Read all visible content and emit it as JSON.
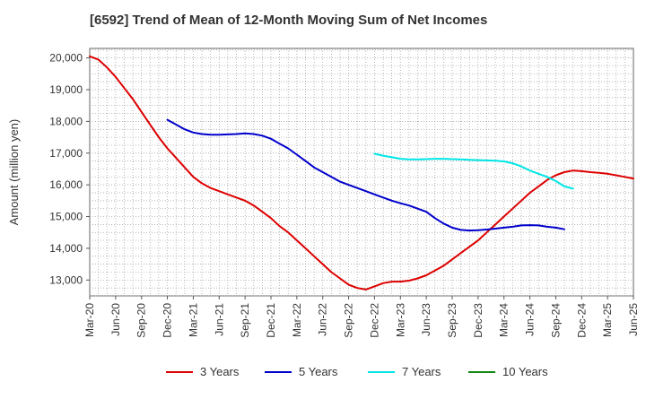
{
  "chart_data": {
    "type": "line",
    "title": "[6592]  Trend of Mean of 12-Month Moving Sum of Net Incomes",
    "xlabel": "",
    "ylabel": "Amount (million yen)",
    "ylim": [
      12500,
      20300
    ],
    "yticks": [
      13000,
      14000,
      15000,
      16000,
      17000,
      18000,
      19000,
      20000
    ],
    "ytick_labels": [
      "13,000",
      "14,000",
      "15,000",
      "16,000",
      "17,000",
      "18,000",
      "19,000",
      "20,000"
    ],
    "xticks": [
      "Mar-20",
      "Jun-20",
      "Sep-20",
      "Dec-20",
      "Mar-21",
      "Jun-21",
      "Sep-21",
      "Dec-21",
      "Mar-22",
      "Jun-22",
      "Sep-22",
      "Dec-22",
      "Mar-23",
      "Jun-23",
      "Sep-23",
      "Dec-23",
      "Mar-24",
      "Jun-24",
      "Sep-24",
      "Dec-24",
      "Mar-25",
      "Jun-25"
    ],
    "grid": true,
    "legend_position": "bottom",
    "series": [
      {
        "name": "3 Years",
        "color": "#dd0000",
        "points": [
          [
            0,
            20050
          ],
          [
            1,
            19950
          ],
          [
            2,
            19700
          ],
          [
            3,
            19400
          ],
          [
            4,
            19050
          ],
          [
            5,
            18700
          ],
          [
            6,
            18300
          ],
          [
            7,
            17900
          ],
          [
            8,
            17500
          ],
          [
            9,
            17150
          ],
          [
            10,
            16850
          ],
          [
            11,
            16550
          ],
          [
            12,
            16250
          ],
          [
            13,
            16050
          ],
          [
            14,
            15900
          ],
          [
            15,
            15800
          ],
          [
            16,
            15700
          ],
          [
            17,
            15600
          ],
          [
            18,
            15500
          ],
          [
            19,
            15350
          ],
          [
            20,
            15150
          ],
          [
            21,
            14950
          ],
          [
            22,
            14700
          ],
          [
            23,
            14500
          ],
          [
            24,
            14250
          ],
          [
            25,
            14000
          ],
          [
            26,
            13750
          ],
          [
            27,
            13500
          ],
          [
            28,
            13250
          ],
          [
            29,
            13050
          ],
          [
            30,
            12850
          ],
          [
            31,
            12750
          ],
          [
            32,
            12700
          ],
          [
            33,
            12800
          ],
          [
            34,
            12900
          ],
          [
            35,
            12950
          ],
          [
            36,
            12950
          ],
          [
            37,
            12980
          ],
          [
            38,
            13050
          ],
          [
            39,
            13150
          ],
          [
            40,
            13300
          ],
          [
            41,
            13450
          ],
          [
            42,
            13650
          ],
          [
            43,
            13850
          ],
          [
            44,
            14050
          ],
          [
            45,
            14250
          ],
          [
            46,
            14500
          ],
          [
            47,
            14750
          ],
          [
            48,
            15000
          ],
          [
            49,
            15250
          ],
          [
            50,
            15500
          ],
          [
            51,
            15750
          ],
          [
            52,
            15950
          ],
          [
            53,
            16150
          ],
          [
            54,
            16300
          ],
          [
            55,
            16400
          ],
          [
            56,
            16450
          ],
          [
            57,
            16430
          ],
          [
            58,
            16400
          ],
          [
            59,
            16380
          ],
          [
            60,
            16350
          ],
          [
            61,
            16300
          ],
          [
            62,
            16250
          ],
          [
            63,
            16200
          ]
        ]
      },
      {
        "name": "5 Years",
        "color": "#0000cc",
        "points": [
          [
            9,
            18050
          ],
          [
            10,
            17900
          ],
          [
            11,
            17750
          ],
          [
            12,
            17650
          ],
          [
            13,
            17600
          ],
          [
            14,
            17580
          ],
          [
            15,
            17580
          ],
          [
            16,
            17590
          ],
          [
            17,
            17600
          ],
          [
            18,
            17620
          ],
          [
            19,
            17600
          ],
          [
            20,
            17550
          ],
          [
            21,
            17450
          ],
          [
            22,
            17300
          ],
          [
            23,
            17150
          ],
          [
            24,
            16950
          ],
          [
            25,
            16750
          ],
          [
            26,
            16550
          ],
          [
            27,
            16400
          ],
          [
            28,
            16250
          ],
          [
            29,
            16100
          ],
          [
            30,
            16000
          ],
          [
            31,
            15900
          ],
          [
            32,
            15800
          ],
          [
            33,
            15700
          ],
          [
            34,
            15600
          ],
          [
            35,
            15500
          ],
          [
            36,
            15420
          ],
          [
            37,
            15350
          ],
          [
            38,
            15250
          ],
          [
            39,
            15150
          ],
          [
            40,
            14950
          ],
          [
            41,
            14780
          ],
          [
            42,
            14650
          ],
          [
            43,
            14580
          ],
          [
            44,
            14560
          ],
          [
            45,
            14570
          ],
          [
            46,
            14590
          ],
          [
            47,
            14620
          ],
          [
            48,
            14650
          ],
          [
            49,
            14680
          ],
          [
            50,
            14720
          ],
          [
            51,
            14730
          ],
          [
            52,
            14720
          ],
          [
            53,
            14680
          ],
          [
            54,
            14650
          ],
          [
            55,
            14600
          ]
        ]
      },
      {
        "name": "7 Years",
        "color": "#00e5e5",
        "points": [
          [
            33,
            16980
          ],
          [
            34,
            16920
          ],
          [
            35,
            16870
          ],
          [
            36,
            16820
          ],
          [
            37,
            16800
          ],
          [
            38,
            16800
          ],
          [
            39,
            16810
          ],
          [
            40,
            16820
          ],
          [
            41,
            16820
          ],
          [
            42,
            16810
          ],
          [
            43,
            16800
          ],
          [
            44,
            16790
          ],
          [
            45,
            16780
          ],
          [
            46,
            16770
          ],
          [
            47,
            16760
          ],
          [
            48,
            16740
          ],
          [
            49,
            16680
          ],
          [
            50,
            16580
          ],
          [
            51,
            16450
          ],
          [
            52,
            16350
          ],
          [
            53,
            16250
          ],
          [
            54,
            16120
          ],
          [
            55,
            15950
          ],
          [
            56,
            15880
          ]
        ]
      },
      {
        "name": "10 Years",
        "color": "#118811",
        "points": []
      }
    ]
  }
}
